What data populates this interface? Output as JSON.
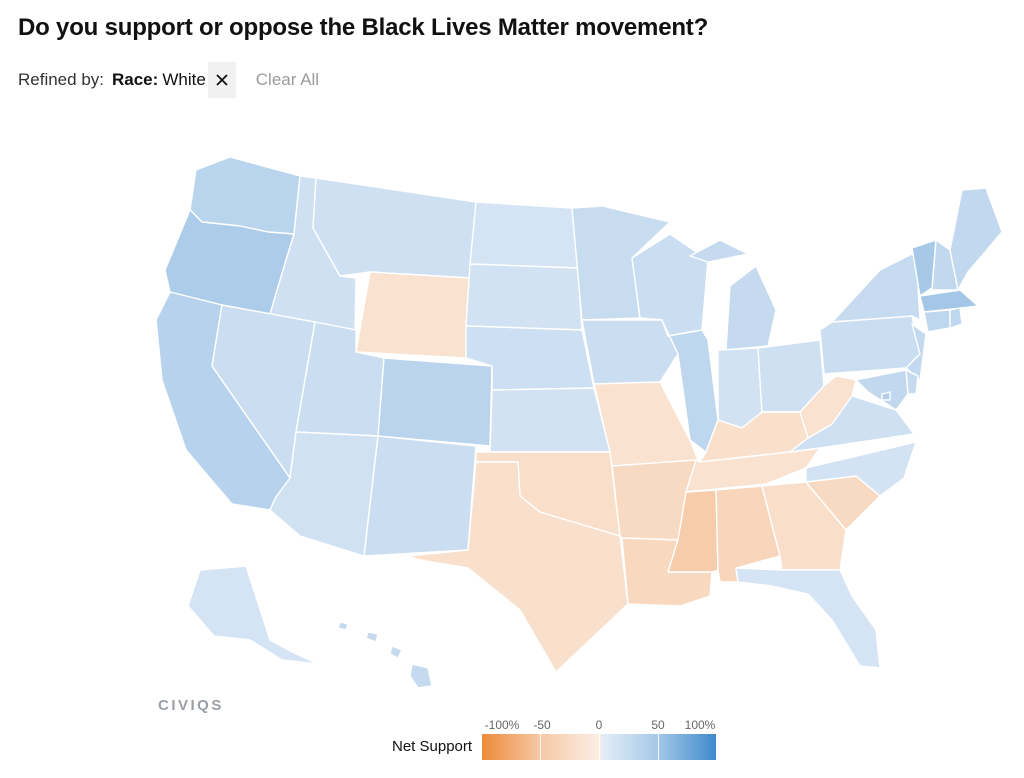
{
  "header": {
    "title": "Do you support or oppose the Black Lives Matter movement?"
  },
  "filters": {
    "refined_by_label": "Refined by:",
    "chip_key": "Race:",
    "chip_value": "White",
    "clear_all_label": "Clear All"
  },
  "logo_text": "CIVIQS",
  "legend": {
    "label": "Net Support",
    "ticks": [
      "-100%",
      "-50",
      "0",
      "50",
      "100%"
    ],
    "colors": {
      "min": "#ed8a3a",
      "mid": "#fbeee4",
      "max": "#3f8acd"
    }
  },
  "map": {
    "type": "choropleth",
    "metric": "Net Support",
    "scale": [
      -100,
      100
    ],
    "net_support_by_state": {
      "WA": 25,
      "OR": 33,
      "CA": 27,
      "ID": 12,
      "NV": 14,
      "MT": 12,
      "WY": -12,
      "UT": 14,
      "AZ": 11,
      "CO": 24,
      "NM": 14,
      "ND": 8,
      "SD": 10,
      "NE": 13,
      "KS": 10,
      "OK": -16,
      "TX": -14,
      "MN": 16,
      "IA": 15,
      "MO": -12,
      "AR": -20,
      "LA": -22,
      "WI": 15,
      "IL": 22,
      "MI": 18,
      "IN": 10,
      "OH": 12,
      "KY": -14,
      "TN": -12,
      "MS": -34,
      "AL": -24,
      "GA": -16,
      "FL": 8,
      "SC": -20,
      "NC": 9,
      "VA": 12,
      "WV": -12,
      "PA": 14,
      "NY": 17,
      "VT": 36,
      "NH": 20,
      "ME": 20,
      "MA": 38,
      "RI": 22,
      "CT": 22,
      "NJ": 19,
      "DE": 17,
      "MD": 20,
      "DC": 30,
      "AK": 8,
      "HI": 18
    }
  }
}
